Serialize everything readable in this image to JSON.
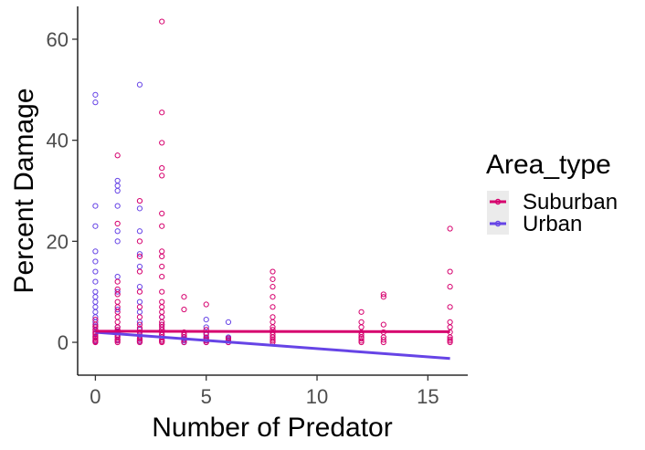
{
  "chart_data": {
    "type": "scatter",
    "title": "",
    "xlabel": "Number of Predator",
    "ylabel": "Percent Damage",
    "xlim": [
      -0.8,
      16.8
    ],
    "ylim": [
      -6.5,
      66.5
    ],
    "x_ticks": [
      0,
      5,
      10,
      15
    ],
    "y_ticks": [
      0,
      20,
      40,
      60
    ],
    "x_tick_labels": [
      "0",
      "5",
      "10",
      "15"
    ],
    "y_tick_labels": [
      "0",
      "20",
      "40",
      "60"
    ],
    "grid": false,
    "legend": {
      "title": "Area_type",
      "position": "right"
    },
    "series": [
      {
        "name": "Suburban",
        "color": "#d6006e",
        "points": [
          [
            0,
            0
          ],
          [
            0,
            0.2
          ],
          [
            0,
            0.5
          ],
          [
            0,
            0.8
          ],
          [
            0,
            1.2
          ],
          [
            0,
            1.6
          ],
          [
            0,
            2
          ],
          [
            0,
            2.5
          ],
          [
            0,
            3
          ],
          [
            0,
            3.5
          ],
          [
            0,
            4.5
          ],
          [
            1,
            0
          ],
          [
            1,
            0.3
          ],
          [
            1,
            0.6
          ],
          [
            1,
            1
          ],
          [
            1,
            1.5
          ],
          [
            1,
            2
          ],
          [
            1,
            2.5
          ],
          [
            1,
            3
          ],
          [
            1,
            4
          ],
          [
            1,
            5
          ],
          [
            1,
            6
          ],
          [
            1,
            7
          ],
          [
            1,
            8
          ],
          [
            1,
            9.5
          ],
          [
            1,
            10.5
          ],
          [
            1,
            12
          ],
          [
            1,
            23.5
          ],
          [
            1,
            37
          ],
          [
            2,
            0
          ],
          [
            2,
            0.3
          ],
          [
            2,
            0.7
          ],
          [
            2,
            1.2
          ],
          [
            2,
            2
          ],
          [
            2,
            2.8
          ],
          [
            2,
            3.5
          ],
          [
            2,
            5
          ],
          [
            2,
            7
          ],
          [
            2,
            10
          ],
          [
            2,
            14
          ],
          [
            2,
            17
          ],
          [
            2,
            20
          ],
          [
            2,
            28
          ],
          [
            3,
            0
          ],
          [
            3,
            0.2
          ],
          [
            3,
            0.5
          ],
          [
            3,
            1
          ],
          [
            3,
            1.5
          ],
          [
            3,
            2
          ],
          [
            3,
            2.5
          ],
          [
            3,
            3
          ],
          [
            3,
            3.5
          ],
          [
            3,
            4
          ],
          [
            3,
            5
          ],
          [
            3,
            6
          ],
          [
            3,
            7
          ],
          [
            3,
            8
          ],
          [
            3,
            10
          ],
          [
            3,
            13
          ],
          [
            3,
            15
          ],
          [
            3,
            17
          ],
          [
            3,
            18
          ],
          [
            3,
            23
          ],
          [
            3,
            25.5
          ],
          [
            3,
            33
          ],
          [
            3,
            34.5
          ],
          [
            3,
            39.5
          ],
          [
            3,
            45.5
          ],
          [
            3,
            63.5
          ],
          [
            4,
            0
          ],
          [
            4,
            0.5
          ],
          [
            4,
            1
          ],
          [
            4,
            1.5
          ],
          [
            4,
            2
          ],
          [
            4,
            6.5
          ],
          [
            4,
            9
          ],
          [
            5,
            0
          ],
          [
            5,
            0.3
          ],
          [
            5,
            0.6
          ],
          [
            5,
            1
          ],
          [
            5,
            1.8
          ],
          [
            5,
            2.5
          ],
          [
            5,
            7.5
          ],
          [
            6,
            0
          ],
          [
            6,
            0.4
          ],
          [
            6,
            0.8
          ],
          [
            8,
            0
          ],
          [
            8,
            0.3
          ],
          [
            8,
            0.6
          ],
          [
            8,
            1
          ],
          [
            8,
            1.5
          ],
          [
            8,
            2
          ],
          [
            8,
            2.5
          ],
          [
            8,
            3
          ],
          [
            8,
            4
          ],
          [
            8,
            5
          ],
          [
            8,
            7
          ],
          [
            8,
            9
          ],
          [
            8,
            11
          ],
          [
            8,
            12.5
          ],
          [
            8,
            14
          ],
          [
            12,
            0
          ],
          [
            12,
            0.3
          ],
          [
            12,
            0.7
          ],
          [
            12,
            1
          ],
          [
            12,
            1.5
          ],
          [
            12,
            2
          ],
          [
            12,
            3
          ],
          [
            12,
            4
          ],
          [
            12,
            6
          ],
          [
            13,
            0
          ],
          [
            13,
            0.5
          ],
          [
            13,
            1
          ],
          [
            13,
            2
          ],
          [
            13,
            3.5
          ],
          [
            13,
            9
          ],
          [
            13,
            9.5
          ],
          [
            16,
            0
          ],
          [
            16,
            0.3
          ],
          [
            16,
            0.6
          ],
          [
            16,
            1
          ],
          [
            16,
            2
          ],
          [
            16,
            3
          ],
          [
            16,
            4
          ],
          [
            16,
            7
          ],
          [
            16,
            11
          ],
          [
            16,
            14
          ],
          [
            16,
            22.5
          ]
        ],
        "trend": [
          [
            0,
            2.2
          ],
          [
            16,
            2.1
          ]
        ]
      },
      {
        "name": "Urban",
        "color": "#6644e6",
        "points": [
          [
            0,
            0.1
          ],
          [
            0,
            0.4
          ],
          [
            0,
            1
          ],
          [
            0,
            1.8
          ],
          [
            0,
            2.5
          ],
          [
            0,
            3.2
          ],
          [
            0,
            4
          ],
          [
            0,
            5
          ],
          [
            0,
            6
          ],
          [
            0,
            7
          ],
          [
            0,
            8
          ],
          [
            0,
            9
          ],
          [
            0,
            10
          ],
          [
            0,
            12
          ],
          [
            0,
            14
          ],
          [
            0,
            16
          ],
          [
            0,
            18
          ],
          [
            0,
            23
          ],
          [
            0,
            27
          ],
          [
            0,
            47.5
          ],
          [
            0,
            49
          ],
          [
            1,
            0.5
          ],
          [
            1,
            1.2
          ],
          [
            1,
            2.2
          ],
          [
            1,
            3
          ],
          [
            1,
            6.5
          ],
          [
            1,
            10
          ],
          [
            1,
            13
          ],
          [
            1,
            20
          ],
          [
            1,
            22
          ],
          [
            1,
            27
          ],
          [
            1,
            30
          ],
          [
            1,
            31
          ],
          [
            1,
            32
          ],
          [
            2,
            0.2
          ],
          [
            2,
            0.6
          ],
          [
            2,
            1.5
          ],
          [
            2,
            2.5
          ],
          [
            2,
            4
          ],
          [
            2,
            6
          ],
          [
            2,
            8
          ],
          [
            2,
            11
          ],
          [
            2,
            15
          ],
          [
            2,
            17.5
          ],
          [
            2,
            22
          ],
          [
            2,
            26.5
          ],
          [
            2,
            51
          ],
          [
            3,
            0.5
          ],
          [
            3,
            1.5
          ],
          [
            3,
            2.5
          ],
          [
            3,
            3.5
          ],
          [
            3,
            5
          ],
          [
            4,
            0
          ],
          [
            4,
            0.3
          ],
          [
            4,
            0.7
          ],
          [
            4,
            1
          ],
          [
            4,
            1.5
          ],
          [
            5,
            0
          ],
          [
            5,
            0.4
          ],
          [
            5,
            0.8
          ],
          [
            5,
            1.5
          ],
          [
            5,
            3
          ],
          [
            5,
            4.5
          ],
          [
            6,
            0
          ],
          [
            6,
            0.3
          ],
          [
            6,
            0.6
          ],
          [
            6,
            1
          ],
          [
            6,
            4
          ]
        ],
        "trend": [
          [
            0,
            2
          ],
          [
            16,
            -3.2
          ]
        ]
      }
    ]
  }
}
